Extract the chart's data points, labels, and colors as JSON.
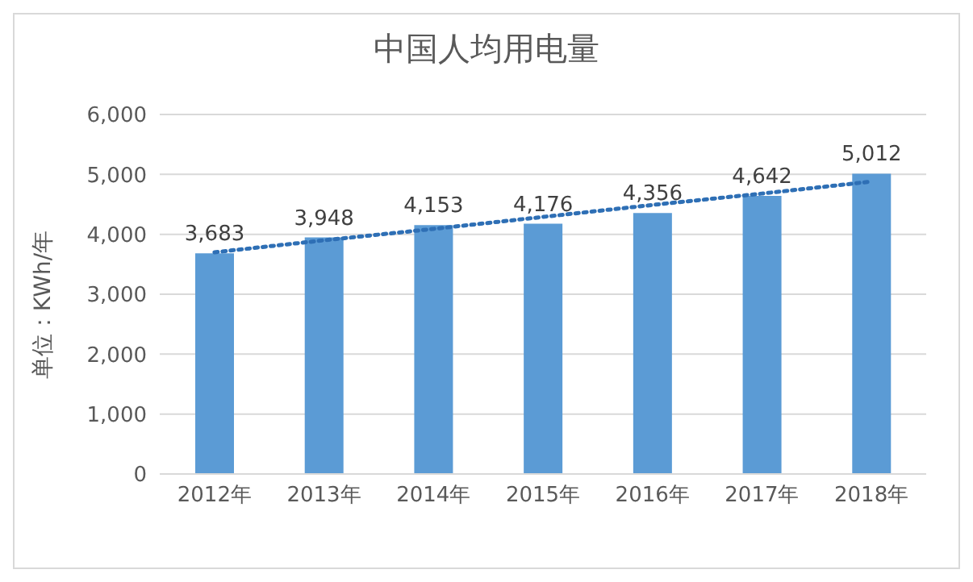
{
  "chart_data": {
    "type": "bar",
    "title": "中国人均用电量",
    "ylabel": "单位：KWh/年",
    "categories": [
      "2012年",
      "2013年",
      "2014年",
      "2015年",
      "2016年",
      "2017年",
      "2018年"
    ],
    "series": [
      {
        "color": "#5b9bd5",
        "values": [
          3683,
          3948,
          4153,
          4176,
          4356,
          4642,
          5012
        ],
        "value_labels": [
          "3,683",
          "3,948",
          "4,153",
          "4,176",
          "4,356",
          "4,642",
          "5,012"
        ]
      },
      {
        "type": "line",
        "color": "#2e6fb5",
        "line_style": "dotted",
        "marker": "none",
        "values": [
          3700,
          3900,
          4090,
          4290,
          4490,
          4680,
          4880
        ]
      }
    ],
    "ylim": [
      0,
      6000
    ],
    "yticks": [
      0,
      {
        "value": 1000,
        "label": "1,000"
      },
      {
        "value": 2000,
        "label": "2,000"
      },
      {
        "value": 3000,
        "label": "3,000"
      },
      {
        "value": 4000,
        "label": "4,000"
      },
      {
        "value": 5000,
        "label": "5,000"
      },
      {
        "value": 6000,
        "label": "6,000"
      }
    ],
    "grid": "y",
    "legend": false
  }
}
